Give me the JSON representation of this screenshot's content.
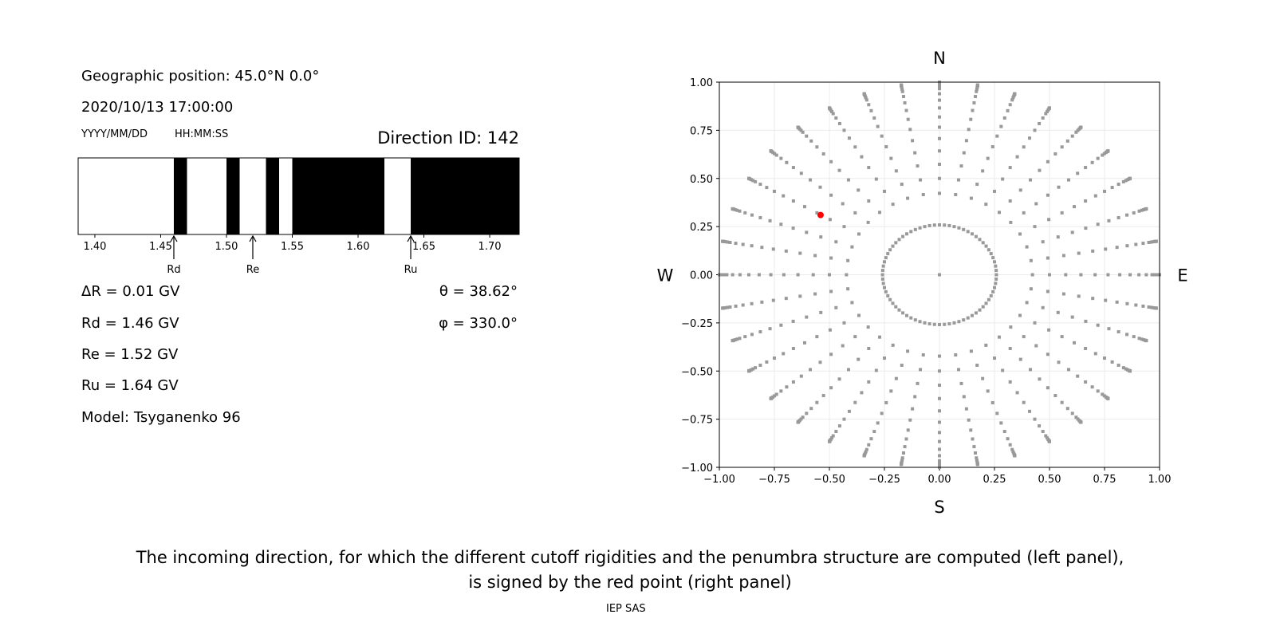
{
  "left_panel": {
    "geo_position": "Geographic position: 45.0°N 0.0°",
    "datetime": "2020/10/13 17:00:00",
    "date_format": "YYYY/MM/DD",
    "time_format": "HH:MM:SS",
    "direction_id": "Direction ID: 142",
    "delta_r": "ΔR = 0.01 GV",
    "rd": "Rd = 1.46 GV",
    "re": "Re = 1.52 GV",
    "ru": "Ru = 1.64 GV",
    "model": "Model: Tsyganenko 96",
    "theta": "θ = 38.62°",
    "phi": "φ = 330.0°"
  },
  "chart_data": [
    {
      "type": "penumbra-bar",
      "xlim": [
        1.3873,
        1.7224
      ],
      "ticks": [
        "1.40",
        "1.45",
        "1.50",
        "1.55",
        "1.60",
        "1.65",
        "1.70"
      ],
      "tick_values": [
        1.4,
        1.45,
        1.5,
        1.55,
        1.6,
        1.65,
        1.7
      ],
      "forbidden_intervals": [
        [
          1.46,
          1.47
        ],
        [
          1.5,
          1.51
        ],
        [
          1.53,
          1.54
        ],
        [
          1.55,
          1.62
        ],
        [
          1.64,
          1.7224
        ]
      ],
      "markers": [
        {
          "label": "Rd",
          "value": 1.46
        },
        {
          "label": "Re",
          "value": 1.52
        },
        {
          "label": "Ru",
          "value": 1.64
        }
      ],
      "colors": {
        "allowed": "#ffffff",
        "forbidden": "#000000"
      }
    },
    {
      "type": "scatter",
      "xlim": [
        -1,
        1
      ],
      "ylim": [
        -1,
        1
      ],
      "ticks": [
        "−1.00",
        "−0.75",
        "−0.50",
        "−0.25",
        "0.00",
        "0.25",
        "0.50",
        "0.75",
        "1.00"
      ],
      "tick_values": [
        -1,
        -0.75,
        -0.5,
        -0.25,
        0,
        0.25,
        0.5,
        0.75,
        1
      ],
      "grid": true,
      "directions": {
        "north": "N",
        "south": "S",
        "west": "W",
        "east": "E"
      },
      "grid_points": {
        "azimuth_step_deg": 10,
        "zenith_deg": [
          15,
          25,
          30,
          35,
          40,
          45,
          50,
          55,
          60,
          65,
          70,
          75,
          78,
          81,
          84,
          86,
          88,
          89,
          90
        ],
        "color": "#999999"
      },
      "selected_point": {
        "x": -0.54,
        "y": 0.31,
        "color": "#ff0000"
      }
    }
  ],
  "caption": {
    "line1": "The incoming direction, for which the different cutoff rigidities and the penumbra structure are computed (left panel),",
    "line2": "is signed by the red point (right panel)"
  },
  "footer": "IEP SAS"
}
